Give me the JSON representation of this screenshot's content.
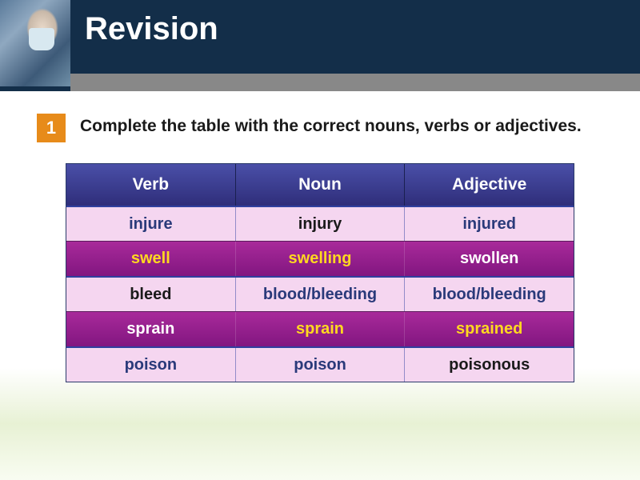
{
  "header": {
    "title": "Revision"
  },
  "instruction": {
    "number": "1",
    "text": "Complete the table with the correct nouns, verbs or adjectives."
  },
  "table": {
    "columns": [
      "Verb",
      "Noun",
      "Adjective"
    ],
    "rows": [
      {
        "style": "pink",
        "cells": [
          {
            "text": "injure",
            "color": "navy"
          },
          {
            "text": "injury",
            "color": "black"
          },
          {
            "text": "injured",
            "color": "navy"
          }
        ]
      },
      {
        "style": "purple",
        "cells": [
          {
            "text": "swell",
            "color": "yellow"
          },
          {
            "text": "swelling",
            "color": "yellow"
          },
          {
            "text": "swollen",
            "color": "white"
          }
        ]
      },
      {
        "style": "pink",
        "cells": [
          {
            "text": "bleed",
            "color": "black"
          },
          {
            "text": "blood/bleeding",
            "color": "navy"
          },
          {
            "text": "blood/bleeding",
            "color": "navy"
          }
        ]
      },
      {
        "style": "purple",
        "cells": [
          {
            "text": "sprain",
            "color": "white"
          },
          {
            "text": "sprain",
            "color": "yellow"
          },
          {
            "text": "sprained",
            "color": "yellow"
          }
        ]
      },
      {
        "style": "pink",
        "cells": [
          {
            "text": "poison",
            "color": "navy"
          },
          {
            "text": "poison",
            "color": "navy"
          },
          {
            "text": "poisonous",
            "color": "black"
          }
        ]
      }
    ]
  },
  "colors": {
    "header_bg": "#132e49",
    "badge_bg": "#e78b1a",
    "table_header_grad_top": "#4a4fa8",
    "table_header_grad_bottom": "#2f2e7a",
    "row_pink": "#f5d6f0",
    "row_purple_top": "#a82a9a",
    "row_purple_bottom": "#821680",
    "text_navy": "#2a3a7a",
    "text_yellow": "#ffd820"
  }
}
